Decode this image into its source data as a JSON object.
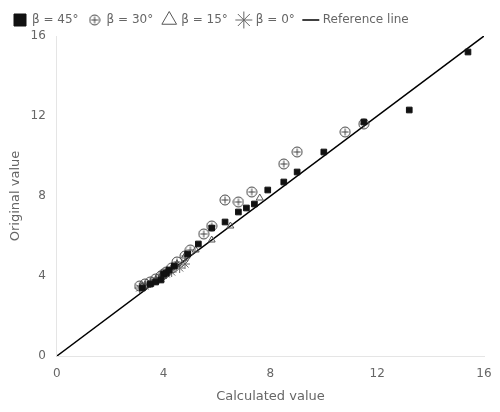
{
  "chart_data": {
    "type": "scatter",
    "xlabel": "Calculated value",
    "ylabel": "Original value",
    "xlim": [
      0,
      16
    ],
    "ylim": [
      0,
      16
    ],
    "xticks": [
      0,
      4,
      8,
      12,
      16
    ],
    "yticks": [
      0,
      4,
      8,
      12,
      16
    ],
    "grid": false,
    "legend": "upper left",
    "series": [
      {
        "name": "β = 45°",
        "color": "#111111",
        "marker": "square",
        "x": [
          3.2,
          3.5,
          3.7,
          3.9,
          4.0,
          4.1,
          4.2,
          4.4,
          4.9,
          5.3,
          5.8,
          6.3,
          6.8,
          7.1,
          7.4,
          7.9,
          8.5,
          9.0,
          10.0,
          11.5,
          13.2,
          15.4
        ],
        "values": [
          3.4,
          3.6,
          3.7,
          3.8,
          4.1,
          4.15,
          4.3,
          4.5,
          5.1,
          5.6,
          6.4,
          6.7,
          7.2,
          7.4,
          7.6,
          8.3,
          8.7,
          9.2,
          10.2,
          11.7,
          12.3,
          15.2
        ]
      },
      {
        "name": "β = 30°",
        "color": "#444444",
        "marker": "circle_plus",
        "x": [
          3.1,
          3.3,
          3.5,
          3.7,
          3.9,
          4.0,
          4.1,
          4.3,
          4.5,
          4.8,
          5.0,
          5.5,
          5.8,
          6.3,
          6.8,
          7.3,
          8.5,
          9.0,
          10.8,
          11.5
        ],
        "values": [
          3.5,
          3.6,
          3.7,
          3.85,
          4.0,
          4.1,
          4.2,
          4.4,
          4.7,
          5.0,
          5.3,
          6.1,
          6.5,
          7.8,
          7.7,
          8.2,
          9.6,
          10.2,
          11.2,
          11.6
        ]
      },
      {
        "name": "β = 15°",
        "color": "#555555",
        "marker": "triangle",
        "x": [
          3.2,
          3.5,
          3.7,
          3.9,
          4.1,
          4.3,
          4.5,
          4.8,
          5.2,
          5.8,
          6.5,
          7.6
        ],
        "values": [
          3.5,
          3.6,
          3.8,
          4.0,
          4.2,
          4.4,
          4.6,
          5.0,
          5.3,
          5.8,
          6.5,
          7.9
        ]
      },
      {
        "name": "β = 0°",
        "color": "#666666",
        "marker": "star",
        "x": [
          3.1,
          3.3,
          3.5,
          3.7,
          3.9,
          4.1,
          4.3,
          4.6,
          4.8
        ],
        "values": [
          3.4,
          3.5,
          3.65,
          3.8,
          3.9,
          4.1,
          4.2,
          4.4,
          4.6
        ]
      },
      {
        "name": "Reference line",
        "type": "line",
        "color": "#000000",
        "line_style": "solid",
        "x": [
          0,
          16
        ],
        "values": [
          0,
          16
        ]
      }
    ]
  }
}
